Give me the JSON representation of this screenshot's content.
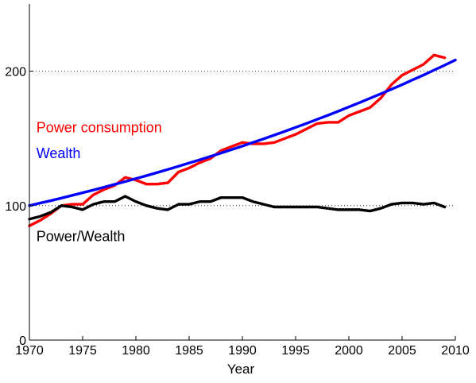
{
  "chart_data": {
    "type": "line",
    "title": "",
    "xlabel": "Year",
    "ylabel": "",
    "xlim": [
      1970,
      2010
    ],
    "ylim": [
      0,
      250
    ],
    "xticks": [
      1970,
      1975,
      1980,
      1985,
      1990,
      1995,
      2000,
      2005,
      2010
    ],
    "yticks": [
      0,
      100,
      200
    ],
    "xtick_labels": [
      "1970",
      "1975",
      "1980",
      "1985",
      "1990",
      "1995",
      "2000",
      "2005",
      "2010"
    ],
    "ytick_labels": [
      "0",
      "100",
      "200"
    ],
    "reference_lines": [
      100,
      200
    ],
    "grid": false,
    "legend": "none",
    "series": [
      {
        "name": "Power consumption",
        "color": "#ff0000",
        "x": [
          1970,
          1971,
          1972,
          1973,
          1974,
          1975,
          1976,
          1977,
          1978,
          1979,
          1980,
          1981,
          1982,
          1983,
          1984,
          1985,
          1986,
          1987,
          1988,
          1989,
          1990,
          1991,
          1992,
          1993,
          1994,
          1995,
          1996,
          1997,
          1998,
          1999,
          2000,
          2001,
          2002,
          2003,
          2004,
          2005,
          2006,
          2007,
          2008,
          2009
        ],
        "values": [
          85,
          89,
          94,
          100,
          101,
          101,
          108,
          112,
          115,
          121,
          119,
          116,
          116,
          117,
          125,
          128,
          132,
          135,
          141,
          144,
          147,
          146,
          146,
          147,
          150,
          153,
          157,
          161,
          162,
          162,
          167,
          170,
          173,
          180,
          190,
          197,
          201,
          205,
          212,
          210
        ]
      },
      {
        "name": "Wealth",
        "color": "#0000ff",
        "x": [
          1970,
          1971,
          1972,
          1973,
          1974,
          1975,
          1976,
          1977,
          1978,
          1979,
          1980,
          1981,
          1982,
          1983,
          1984,
          1985,
          1986,
          1987,
          1988,
          1989,
          1990,
          1991,
          1992,
          1993,
          1994,
          1995,
          1996,
          1997,
          1998,
          1999,
          2000,
          2001,
          2002,
          2003,
          2004,
          2005,
          2006,
          2007,
          2008,
          2009,
          2010
        ],
        "values": [
          100,
          101.9,
          103.7,
          105.6,
          107.6,
          109.6,
          111.6,
          113.7,
          115.8,
          117.9,
          120.1,
          122.3,
          124.6,
          126.9,
          129.3,
          131.7,
          134.1,
          136.6,
          139.1,
          141.7,
          144.3,
          147.0,
          149.7,
          152.5,
          155.3,
          158.2,
          161.1,
          164.1,
          167.1,
          170.2,
          173.4,
          176.6,
          179.9,
          183.2,
          186.6,
          190.0,
          193.6,
          197.1,
          200.8,
          204.5,
          208.3
        ]
      },
      {
        "name": "Power/Wealth",
        "color": "#000000",
        "x": [
          1970,
          1971,
          1972,
          1973,
          1974,
          1975,
          1976,
          1977,
          1978,
          1979,
          1980,
          1981,
          1982,
          1983,
          1984,
          1985,
          1986,
          1987,
          1988,
          1989,
          1990,
          1991,
          1992,
          1993,
          1994,
          1995,
          1996,
          1997,
          1998,
          1999,
          2000,
          2001,
          2002,
          2003,
          2004,
          2005,
          2006,
          2007,
          2008,
          2009
        ],
        "values": [
          90,
          92,
          95,
          100,
          99,
          97,
          101,
          103,
          103,
          107,
          103,
          100,
          98,
          97,
          101,
          101,
          103,
          103,
          106,
          106,
          106,
          103,
          101,
          99,
          99,
          99,
          99,
          99,
          98,
          97,
          97,
          97,
          96,
          98,
          101,
          102,
          102,
          101,
          102,
          99
        ]
      }
    ],
    "annotations": [
      {
        "text": "Power consumption",
        "x": 1970.5,
        "y": 158,
        "color": "#ff0000"
      },
      {
        "text": "Wealth",
        "x": 1970.5,
        "y": 139,
        "color": "#0000ff"
      },
      {
        "text": "Power/Wealth",
        "x": 1970.5,
        "y": 77,
        "color": "#000000"
      }
    ]
  }
}
